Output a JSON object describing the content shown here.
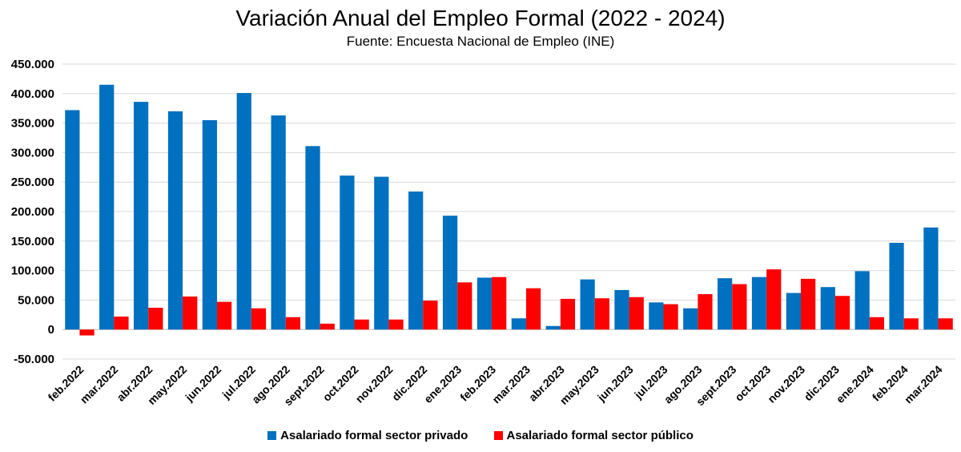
{
  "chart_data": {
    "type": "bar",
    "title": "Variación Anual del Empleo Formal (2022 - 2024)",
    "subtitle": "Fuente: Encuesta Nacional de Empleo (INE)",
    "xlabel": "",
    "ylabel": "",
    "ylim": [
      -50000,
      450000
    ],
    "y_ticks": [
      450000,
      400000,
      350000,
      300000,
      250000,
      200000,
      150000,
      100000,
      50000,
      0,
      -50000
    ],
    "y_tick_labels": [
      "450.000",
      "400.000",
      "350.000",
      "300.000",
      "250.000",
      "200.000",
      "150.000",
      "100.000",
      "50.000",
      "0",
      "-50.000"
    ],
    "grid": true,
    "legend_position": "bottom",
    "categories": [
      "feb.2022",
      "mar.2022",
      "abr.2022",
      "may.2022",
      "jun.2022",
      "jul.2022",
      "ago.2022",
      "sept.2022",
      "oct.2022",
      "nov.2022",
      "dic.2022",
      "ene.2023",
      "feb.2023",
      "mar.2023",
      "abr.2023",
      "may.2023",
      "jun.2023",
      "jul.2023",
      "ago.2023",
      "sept.2023",
      "oct.2023",
      "nov.2023",
      "dic.2023",
      "ene.2024",
      "feb.2024",
      "mar.2024"
    ],
    "series": [
      {
        "name": "Asalariado formal sector privado",
        "color": "#0070c0",
        "values": [
          372000,
          415000,
          386000,
          370000,
          355000,
          401000,
          363000,
          311000,
          261000,
          259000,
          234000,
          193000,
          88000,
          19000,
          6000,
          85000,
          67000,
          46000,
          36000,
          87000,
          89000,
          62000,
          72000,
          99000,
          147000,
          173000
        ]
      },
      {
        "name": "Asalariado formal sector público",
        "color": "#ff0000",
        "values": [
          -10000,
          22000,
          37000,
          56000,
          47000,
          36000,
          21000,
          10000,
          17000,
          17000,
          49000,
          80000,
          89000,
          70000,
          52000,
          53000,
          55000,
          43000,
          60000,
          77000,
          102000,
          86000,
          57000,
          21000,
          19000,
          19000
        ]
      }
    ]
  }
}
